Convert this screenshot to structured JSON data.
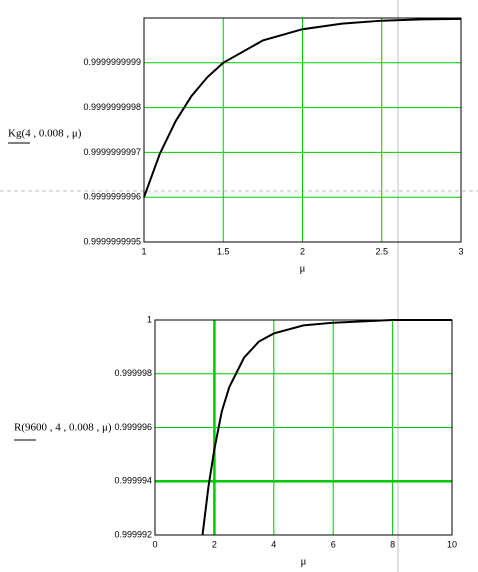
{
  "chart_data": [
    {
      "type": "line",
      "y_label": "Kg(4 , 0.008 , μ)",
      "x_label": "μ",
      "x": [
        1,
        1.1,
        1.2,
        1.3,
        1.4,
        1.5,
        1.75,
        2,
        2.25,
        2.5,
        2.75,
        3
      ],
      "series": [
        {
          "color": "#000000",
          "values": [
            0.9999999996,
            0.999999999697,
            0.99999999977,
            0.999999999826,
            0.999999999868,
            0.9999999999,
            0.99999999995,
            0.999999999975,
            0.9999999999875,
            0.999999999994,
            0.999999999997,
            0.999999999998
          ]
        }
      ],
      "xlim": [
        1,
        3
      ],
      "xticks": [
        1,
        1.5,
        2,
        2.5,
        3
      ],
      "ylim": [
        0.9999999995,
        1
      ],
      "yticks": [
        0.9999999995,
        0.9999999996,
        0.9999999997,
        0.9999999998,
        0.9999999999
      ],
      "grid": true,
      "grid_color": "#00c800"
    },
    {
      "type": "line",
      "y_label": "R(9600 , 4 , 0.008 , μ)",
      "x_label": "μ",
      "x": [
        1.6,
        1.8,
        2,
        2.25,
        2.5,
        3,
        3.5,
        4,
        5,
        6,
        8,
        10
      ],
      "series": [
        {
          "color": "#000000",
          "values": [
            0.999992,
            0.9999938,
            0.9999952,
            0.9999966,
            0.9999975,
            0.9999986,
            0.9999992,
            0.9999995,
            0.9999998,
            0.9999999,
            1,
            1
          ]
        }
      ],
      "xlim": [
        0,
        10
      ],
      "xticks": [
        0,
        2,
        4,
        6,
        8,
        10
      ],
      "ylim": [
        0.999992,
        1
      ],
      "yticks": [
        0.999992,
        0.999994,
        0.999996,
        0.999998,
        1
      ],
      "grid": true,
      "grid_color": "#00c800",
      "markers": {
        "x": 2,
        "y": 0.999994
      }
    }
  ]
}
